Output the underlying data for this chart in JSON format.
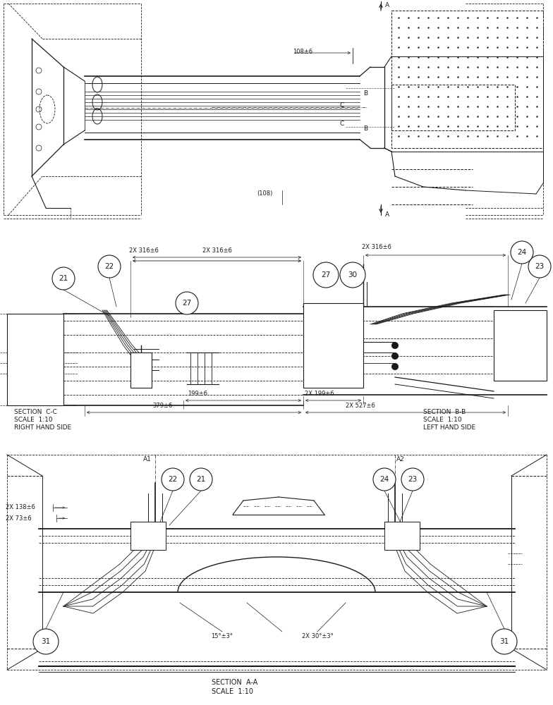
{
  "bg_color": "#ffffff",
  "line_color": "#1a1a1a",
  "section_cc_label": [
    "SECTION  C-C",
    "SCALE  1:10",
    "RIGHT HAND SIDE"
  ],
  "section_bb_label": [
    "SECTION  B-B",
    "SCALE  1:10",
    "LEFT HAND SIDE"
  ],
  "section_aa_label": [
    "SECTION  A-A",
    "SCALE  1:10"
  ],
  "dim_108": "108±6",
  "dim_108p": "(108)",
  "dim_316_cc": "2X 316±6",
  "dim_199_cc": "199±6",
  "dim_379_cc": "379±6",
  "dim_316_bb": "2X 316±6",
  "dim_199_bb": "2X 199±6",
  "dim_527_bb": "2X 527±6",
  "dim_138": "2X 138±6",
  "dim_73": "2X 73±6",
  "dim_15": "15°±3°",
  "dim_30": "2X 30°±3°",
  "font_size_callout": 7.5,
  "font_size_dim": 6.0,
  "font_size_section": 6.5,
  "font_size_label": 6.5
}
